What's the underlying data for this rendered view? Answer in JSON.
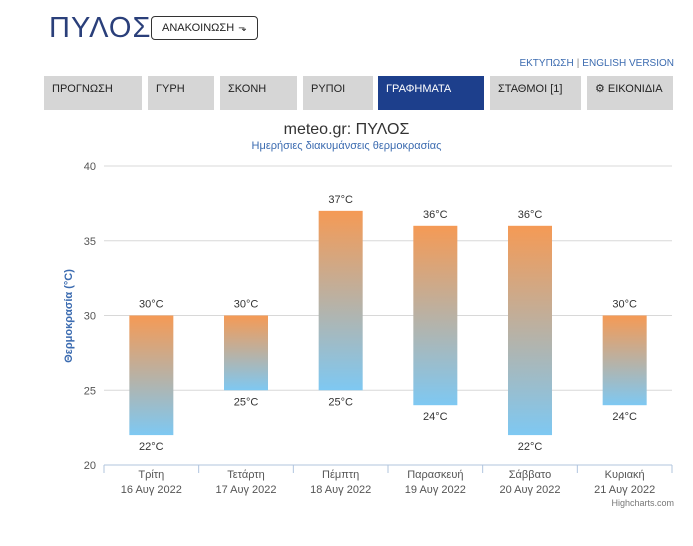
{
  "page": {
    "city_title": "ΠΥΛΟΣ",
    "announce_label": "ΑΝΑΚΟΙΝΩΣΗ",
    "announce_icon": "arrow-down-icon",
    "print_link": "ΕΚΤΥΠΩΣΗ",
    "link_separator": "|",
    "english_link": "ENGLISH VERSION"
  },
  "tabs": [
    {
      "label": "ΠΡΟΓΝΩΣΗ",
      "active": false
    },
    {
      "label": "ΓΥΡΗ",
      "active": false
    },
    {
      "label": "ΣΚΟΝΗ",
      "active": false
    },
    {
      "label": "ΡΥΠΟΙ",
      "active": false
    },
    {
      "label": "ΓΡΑΦΗΜΑΤΑ",
      "active": true
    },
    {
      "label": "ΣΤΑΘΜΟΙ [1]",
      "active": false
    },
    {
      "label": "ΕΙΚΟΝΙΔΙΑ",
      "active": false,
      "icon": "gear-icon"
    }
  ],
  "colors": {
    "title_blue": "#2a3f7a",
    "tab_active": "#1d3f8c",
    "tab_inactive": "#d6d6d6",
    "bar_top": "#f59a55",
    "bar_bottom": "#7ec8f2",
    "link_blue": "#3b6bb0"
  },
  "credits": "Highcharts.com",
  "chart_data": {
    "type": "bar",
    "subtype": "columnrange",
    "title": "meteo.gr: ΠΥΛΟΣ",
    "subtitle": "Ημερήσιες διακυμάνσεις θερμοκρασίας",
    "ylabel": "Θερμοκρασία (°C)",
    "ylim": [
      20,
      40
    ],
    "yticks": [
      20,
      25,
      30,
      35,
      40
    ],
    "grid": true,
    "unit": "°C",
    "categories": [
      {
        "day": "Τρίτη",
        "date": "16 Αυγ 2022"
      },
      {
        "day": "Τετάρτη",
        "date": "17 Αυγ 2022"
      },
      {
        "day": "Πέμπτη",
        "date": "18 Αυγ 2022"
      },
      {
        "day": "Παρασκευή",
        "date": "19 Αυγ 2022"
      },
      {
        "day": "Σάββατο",
        "date": "20 Αυγ 2022"
      },
      {
        "day": "Κυριακή",
        "date": "21 Αυγ 2022"
      }
    ],
    "low": [
      22,
      25,
      25,
      24,
      22,
      24
    ],
    "high": [
      30,
      30,
      37,
      36,
      36,
      30
    ],
    "low_labels": [
      "22°C",
      "25°C",
      "25°C",
      "24°C",
      "22°C",
      "24°C"
    ],
    "high_labels": [
      "30°C",
      "30°C",
      "37°C",
      "36°C",
      "36°C",
      "30°C"
    ]
  }
}
